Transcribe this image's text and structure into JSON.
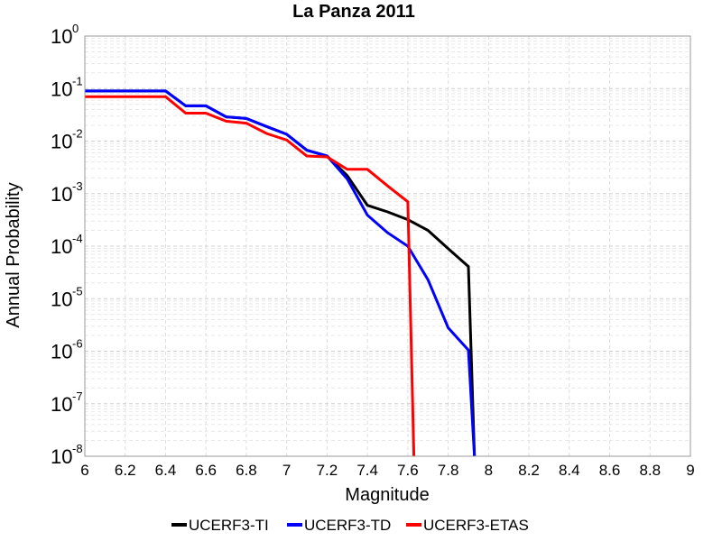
{
  "chart_data": {
    "type": "line",
    "title": "La Panza 2011",
    "xlabel": "Magnitude",
    "ylabel": "Annual Probability",
    "xlim": [
      6,
      9
    ],
    "ylim": [
      1e-08,
      1
    ],
    "yscale": "log",
    "grid": true,
    "legend_position": "bottom",
    "x_ticks": [
      "6",
      "6.2",
      "6.4",
      "6.6",
      "6.8",
      "7",
      "7.2",
      "7.4",
      "7.6",
      "7.8",
      "8",
      "8.2",
      "8.4",
      "8.6",
      "8.8",
      "9"
    ],
    "y_ticks": [
      {
        "base": "10",
        "exp": "0"
      },
      {
        "base": "10",
        "exp": "-1"
      },
      {
        "base": "10",
        "exp": "-2"
      },
      {
        "base": "10",
        "exp": "-3"
      },
      {
        "base": "10",
        "exp": "-4"
      },
      {
        "base": "10",
        "exp": "-5"
      },
      {
        "base": "10",
        "exp": "-6"
      },
      {
        "base": "10",
        "exp": "-7"
      },
      {
        "base": "10",
        "exp": "-8"
      }
    ],
    "series": [
      {
        "name": "UCERF3-TI",
        "color": "#000000",
        "x": [
          6.0,
          6.1,
          6.2,
          6.3,
          6.4,
          6.5,
          6.6,
          6.7,
          6.8,
          6.9,
          7.0,
          7.1,
          7.2,
          7.3,
          7.4,
          7.5,
          7.6,
          7.7,
          7.8,
          7.9,
          7.93
        ],
        "y": [
          0.09,
          0.09,
          0.09,
          0.09,
          0.09,
          0.047,
          0.047,
          0.029,
          0.027,
          0.019,
          0.0135,
          0.0067,
          0.0052,
          0.0022,
          0.0006,
          0.00045,
          0.00032,
          0.0002,
          9e-05,
          4.1e-05,
          1e-08
        ]
      },
      {
        "name": "UCERF3-TD",
        "color": "#0000ff",
        "x": [
          6.0,
          6.1,
          6.2,
          6.3,
          6.4,
          6.5,
          6.6,
          6.7,
          6.8,
          6.9,
          7.0,
          7.1,
          7.2,
          7.3,
          7.4,
          7.5,
          7.6,
          7.7,
          7.8,
          7.9,
          7.93
        ],
        "y": [
          0.09,
          0.09,
          0.09,
          0.09,
          0.09,
          0.047,
          0.047,
          0.029,
          0.027,
          0.019,
          0.0135,
          0.0067,
          0.0052,
          0.0019,
          0.00039,
          0.00018,
          0.0001,
          2.3e-05,
          2.8e-06,
          1.05e-06,
          1e-08
        ]
      },
      {
        "name": "UCERF3-ETAS",
        "color": "#ff0000",
        "x": [
          6.0,
          6.1,
          6.2,
          6.3,
          6.4,
          6.5,
          6.6,
          6.7,
          6.8,
          6.9,
          7.0,
          7.1,
          7.2,
          7.3,
          7.4,
          7.5,
          7.6,
          7.63
        ],
        "y": [
          0.07,
          0.07,
          0.07,
          0.07,
          0.07,
          0.034,
          0.034,
          0.024,
          0.022,
          0.014,
          0.0105,
          0.0052,
          0.005,
          0.0029,
          0.0029,
          0.0014,
          0.0007,
          1e-08
        ]
      }
    ]
  }
}
